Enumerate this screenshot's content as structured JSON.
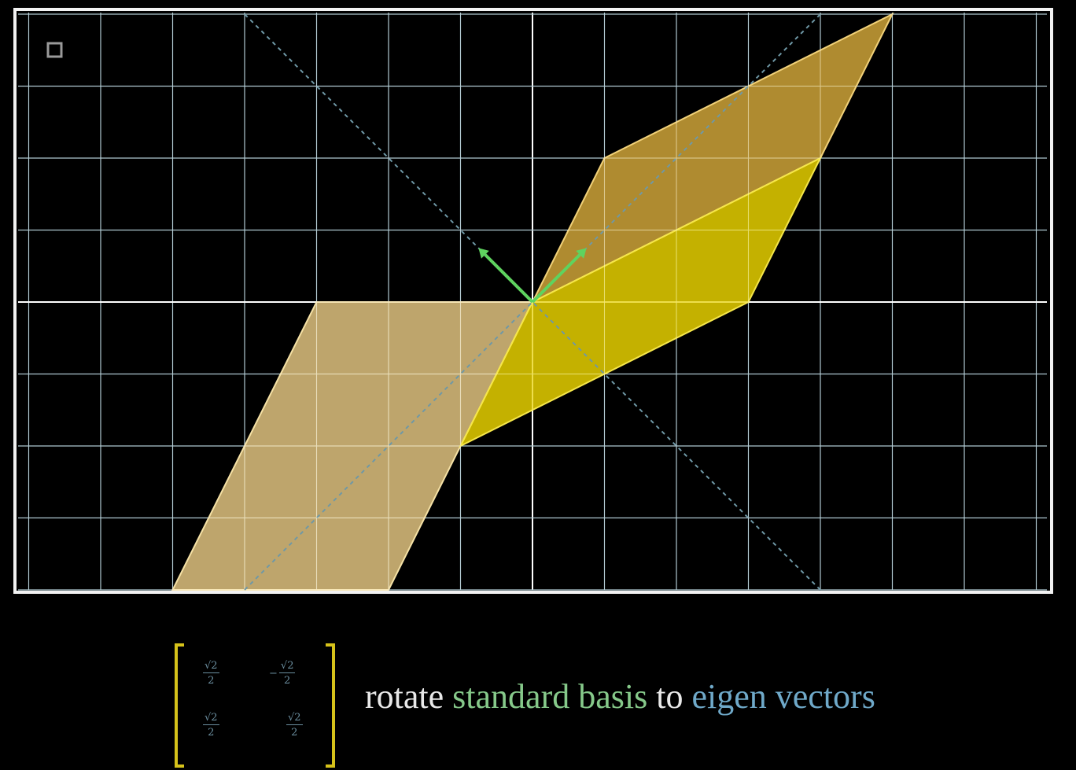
{
  "corner_icon": "square-outline-icon",
  "matrix": {
    "entries": [
      [
        {
          "sign": "",
          "num": "√2",
          "den": "2"
        },
        {
          "sign": "−",
          "num": "√2",
          "den": "2"
        }
      ],
      [
        {
          "sign": "",
          "num": "√2",
          "den": "2"
        },
        {
          "sign": "",
          "num": "√2",
          "den": "2"
        }
      ]
    ],
    "bracket_color": "#d6c21a",
    "entry_color": "#6b8fa0"
  },
  "caption": {
    "word1": "rotate",
    "word2": "standard basis",
    "word3": "to",
    "word4": "eigen vectors"
  },
  "colors": {
    "grid": "#8fb3bf",
    "axis": "#ffffff",
    "shape_light": "#f3d48a",
    "shape_gold": "#d6a93a",
    "shape_yellow": "#e6d000",
    "basis_vectors": "#5fd35f",
    "eigen_lines": "#6f98a6"
  },
  "diagram": {
    "basis_vectors": [
      [
        -0.5,
        0.5
      ],
      [
        0.5,
        0.5
      ]
    ],
    "eigen_lines": [
      [
        1,
        1
      ],
      [
        -1,
        1
      ]
    ],
    "shapes": [
      {
        "name": "light-parallelogram",
        "vertices": [
          [
            0,
            0
          ],
          [
            -3,
            0
          ],
          [
            -5,
            -4
          ],
          [
            -2,
            -4
          ]
        ]
      },
      {
        "name": "gold-parallelogram",
        "vertices": [
          [
            0,
            0
          ],
          [
            1,
            2
          ],
          [
            5,
            4
          ],
          [
            4,
            2
          ]
        ]
      },
      {
        "name": "yellow-parallelogram",
        "vertices": [
          [
            0,
            0
          ],
          [
            4,
            2
          ],
          [
            3,
            0
          ],
          [
            -1,
            -2
          ]
        ]
      }
    ]
  }
}
